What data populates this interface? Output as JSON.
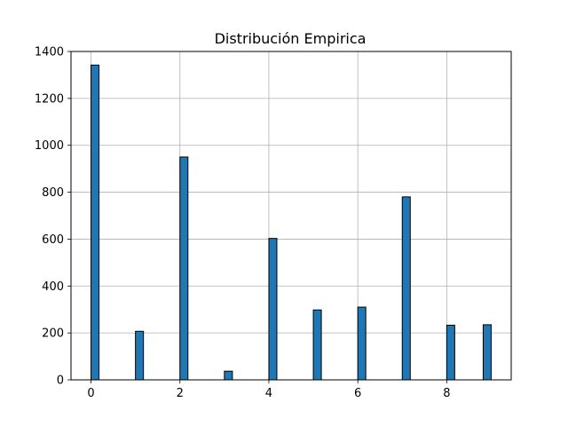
{
  "chart_data": {
    "type": "bar",
    "title": "Distribución Empirica",
    "xlabel": "",
    "ylabel": "",
    "x": [
      0,
      1,
      2,
      3,
      4,
      5,
      6,
      7,
      8,
      9
    ],
    "values": [
      1342,
      207,
      950,
      37,
      603,
      298,
      310,
      780,
      233,
      235
    ],
    "xlim": [
      -0.45,
      9.45
    ],
    "ylim": [
      0,
      1400
    ],
    "xticks": [
      "0",
      "2",
      "4",
      "6",
      "8"
    ],
    "yticks": [
      "0",
      "200",
      "400",
      "600",
      "800",
      "1000",
      "1200",
      "1400"
    ],
    "grid": true,
    "bar_color": "#1f77b4",
    "edge_color": "#000000"
  }
}
